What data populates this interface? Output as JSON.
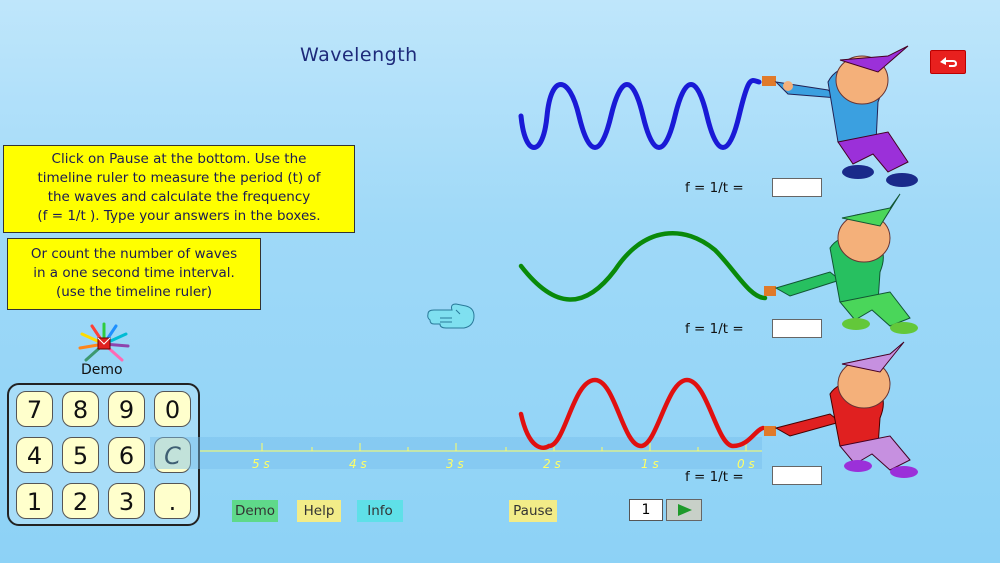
{
  "title": "Wavelength",
  "instructions": [
    "Click on Pause at the bottom. Use the",
    "timeline ruler to measure the period (t) of",
    "the waves and calculate the frequency",
    "(f = 1/t ). Type your answers in the boxes."
  ],
  "instructions_alt": [
    "Or count the number of waves",
    "in a one second time interval.",
    "(use the timeline ruler)"
  ],
  "formula_label": "f  =  1/t  =",
  "demo_label": "Demo",
  "keypad": {
    "row1": [
      "7",
      "8",
      "9",
      "0"
    ],
    "row2": [
      "4",
      "5",
      "6",
      "C"
    ],
    "row3": [
      "1",
      "2",
      "3",
      "."
    ]
  },
  "timeline": [
    "5 s",
    "4 s",
    "3 s",
    "2 s",
    "1 s",
    "0 s"
  ],
  "buttons": {
    "demo": "Demo",
    "help": "Help",
    "info": "Info",
    "pause": "Pause"
  },
  "frame_value": "1",
  "colors": {
    "wave_top": "#1a1ad6",
    "wave_middle": "#0a8a0a",
    "wave_bottom": "#e01010",
    "back_button": "#e8201e",
    "instructions_bg": "#ffff00"
  },
  "icons": [
    "back-arrow-icon",
    "pointing-hand-icon",
    "demo-flower-icon",
    "play-icon"
  ]
}
